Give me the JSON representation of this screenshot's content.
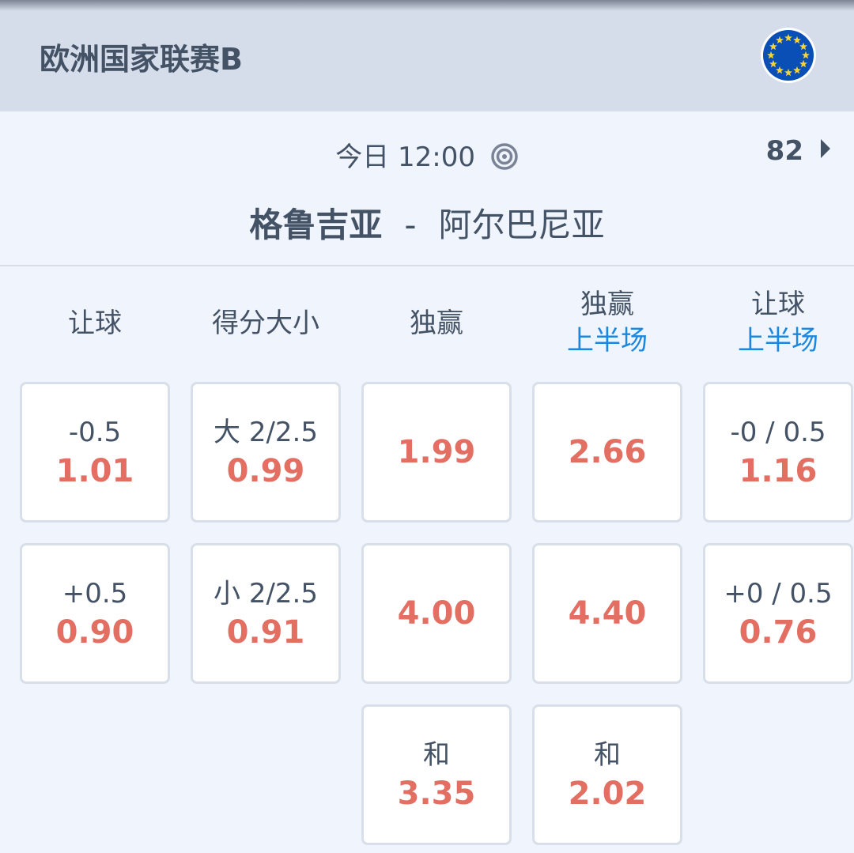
{
  "header": {
    "title": "欧洲国家联赛B",
    "flag_icon": "eu-flag-icon"
  },
  "match": {
    "time": "今日 12:00",
    "live_icon": "broadcast-ring-icon",
    "market_count": "82",
    "home": "格鲁吉亚",
    "separator": "-",
    "away": "阿尔巴尼亚"
  },
  "colors": {
    "odds": "#e36f63",
    "accent": "#1a88e0",
    "text": "#445266"
  },
  "columns": [
    {
      "title": "让球",
      "sub": "",
      "cells": [
        {
          "label": "-0.5",
          "odd": "1.01"
        },
        {
          "label": "+0.5",
          "odd": "0.90"
        }
      ]
    },
    {
      "title": "得分大小",
      "sub": "",
      "cells": [
        {
          "label": "大 2/2.5",
          "odd": "0.99"
        },
        {
          "label": "小 2/2.5",
          "odd": "0.91"
        }
      ]
    },
    {
      "title": "独赢",
      "sub": "",
      "cells": [
        {
          "label": "",
          "odd": "1.99"
        },
        {
          "label": "",
          "odd": "4.00"
        },
        {
          "label": "和",
          "odd": "3.35"
        }
      ]
    },
    {
      "title": "独赢",
      "sub": "上半场",
      "cells": [
        {
          "label": "",
          "odd": "2.66"
        },
        {
          "label": "",
          "odd": "4.40"
        },
        {
          "label": "和",
          "odd": "2.02"
        }
      ]
    },
    {
      "title": "让球",
      "sub": "上半场",
      "cells": [
        {
          "label": "-0 / 0.5",
          "odd": "1.16"
        },
        {
          "label": "+0 / 0.5",
          "odd": "0.76"
        }
      ]
    }
  ]
}
